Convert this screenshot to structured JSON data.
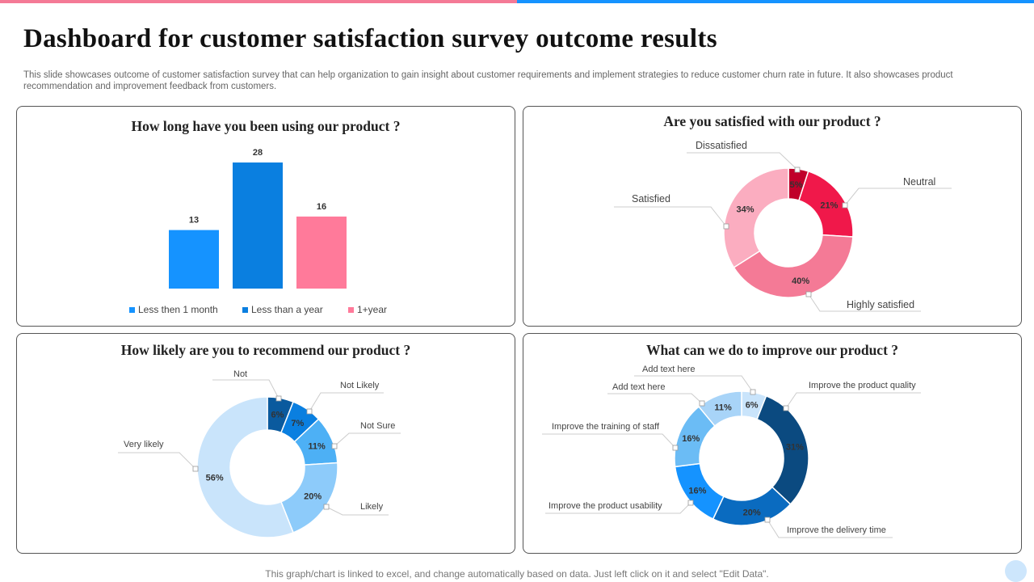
{
  "title": "Dashboard for customer satisfaction survey outcome results",
  "description": "This slide showcases outcome of customer satisfaction survey that can help organization to gain insight about customer requirements and implement strategies to reduce customer churn rate in future. It also showcases product recommendation and improvement feedback from customers.",
  "footer": "This graph/chart is linked to excel,  and change automatically based on data. Just left click on it and select \"Edit Data\".",
  "colors": {
    "accent_pink": "#F47A96",
    "accent_blue": "#1593FF"
  },
  "chart_data": [
    {
      "type": "bar",
      "title": "How long have you been using our product ?",
      "categories": [
        "Less then 1 month",
        "Less than a year",
        "1+year"
      ],
      "values": [
        13,
        28,
        16
      ],
      "colors": [
        "#1593FF",
        "#0A7FE0",
        "#FF7A9A"
      ],
      "legend": "bottom",
      "grid": false
    },
    {
      "type": "pie",
      "donut": true,
      "title": "Are you satisfied with our product ?",
      "categories": [
        "Dissatisfied",
        "Neutral",
        "Highly satisfied",
        "Satisfied"
      ],
      "values": [
        5,
        21,
        40,
        34
      ],
      "labels": [
        "5%",
        "21%",
        "40%",
        "34%"
      ],
      "colors": [
        "#C0002A",
        "#F0184A",
        "#F47A96",
        "#FBADC0"
      ]
    },
    {
      "type": "pie",
      "donut": true,
      "title": "How likely are you to recommend our product ?",
      "categories": [
        "Not",
        "Not Likely",
        "Not Sure",
        "Likely",
        "Very likely"
      ],
      "values": [
        6,
        7,
        11,
        20,
        56
      ],
      "labels": [
        "6%",
        "7%",
        "11%",
        "20%",
        "56%"
      ],
      "colors": [
        "#0A5A9E",
        "#0A7FE0",
        "#4DB0F5",
        "#8DCBFA",
        "#C9E4FB"
      ]
    },
    {
      "type": "pie",
      "donut": true,
      "title": "What can we do to improve our product ?",
      "categories": [
        "Add text here",
        "Improve the product quality",
        "Improve the delivery time",
        "Improve the product usability",
        "Improve the training of staff",
        "Add text here"
      ],
      "values": [
        6,
        31,
        20,
        16,
        16,
        11
      ],
      "labels": [
        "6%",
        "31%",
        "20%",
        "16%",
        "16%",
        "11%"
      ],
      "colors": [
        "#C9E4FB",
        "#0B4A80",
        "#0A6BC0",
        "#1593FF",
        "#6BBCF5",
        "#A8D4F8"
      ]
    }
  ]
}
